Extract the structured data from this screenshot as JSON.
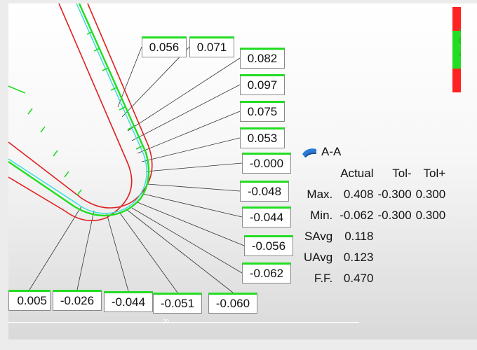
{
  "section": {
    "name": "A-A",
    "icon": "section-plane-icon",
    "columns": [
      "Actual",
      "Tol-",
      "Tol+"
    ],
    "rows": [
      {
        "label": "Max.",
        "actual": "0.408",
        "tol_minus": "-0.300",
        "tol_plus": "0.300"
      },
      {
        "label": "Min.",
        "actual": "-0.062",
        "tol_minus": "-0.300",
        "tol_plus": "0.300"
      },
      {
        "label": "SAvg",
        "actual": "0.118",
        "tol_minus": "",
        "tol_plus": ""
      },
      {
        "label": "UAvg",
        "actual": "0.123",
        "tol_minus": "",
        "tol_plus": ""
      },
      {
        "label": "F.F.",
        "actual": "0.470",
        "tol_minus": "",
        "tol_plus": ""
      }
    ]
  },
  "deviation_labels": [
    "0.056",
    "0.071",
    "0.082",
    "0.097",
    "0.075",
    "0.053",
    "-0.000",
    "-0.048",
    "-0.044",
    "-0.056",
    "-0.062",
    "0.005",
    "-0.026",
    "-0.044",
    "-0.051",
    "-0.060"
  ],
  "scale_bar": {
    "value": "20"
  },
  "colors": {
    "nominal": "#e02020",
    "measured": "#22dd22",
    "tolerance": "#33dddd",
    "leader": "#333333",
    "colorbar_out": "#ff2222",
    "colorbar_in": "#22dd22"
  }
}
